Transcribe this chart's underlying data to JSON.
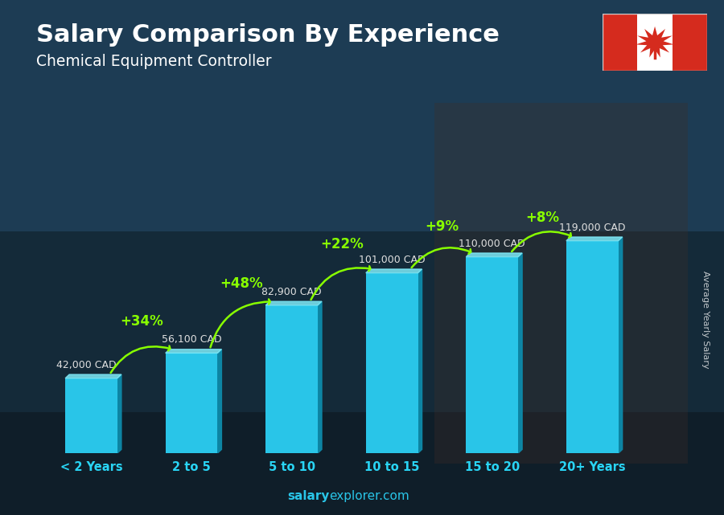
{
  "title": "Salary Comparison By Experience",
  "subtitle": "Chemical Equipment Controller",
  "categories": [
    "< 2 Years",
    "2 to 5",
    "5 to 10",
    "10 to 15",
    "15 to 20",
    "20+ Years"
  ],
  "values": [
    42000,
    56100,
    82900,
    101000,
    110000,
    119000
  ],
  "labels": [
    "42,000 CAD",
    "56,100 CAD",
    "82,900 CAD",
    "101,000 CAD",
    "110,000 CAD",
    "119,000 CAD"
  ],
  "increases": [
    "+34%",
    "+48%",
    "+22%",
    "+9%",
    "+8%"
  ],
  "bar_color": "#29c5e8",
  "bar_right_color": "#0d8aaa",
  "bar_top_color": "#7eeaf8",
  "increase_color": "#88ff00",
  "label_color": "#ffffff",
  "title_color": "#ffffff",
  "subtitle_color": "#ffffff",
  "bg_color": "#1c3040",
  "bg_overlay": "#182838",
  "ylabel": "Average Yearly Salary",
  "footer_salary": "salary",
  "footer_rest": "explorer.com",
  "footer_color": "#29c5e8",
  "ylim": [
    0,
    150000
  ],
  "flag_red": "#D52B1E",
  "xtick_color": "#29d5f5",
  "label_outside_color": "#e0e0e0"
}
